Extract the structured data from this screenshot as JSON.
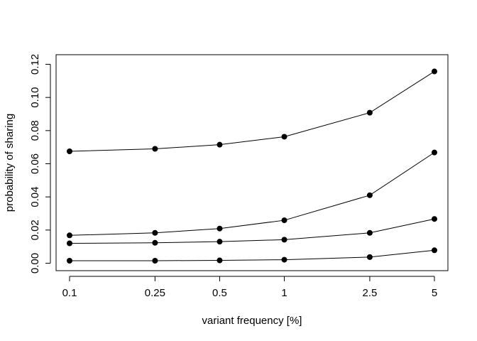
{
  "chart_data": {
    "type": "line",
    "title": "",
    "xlabel": "variant frequency [%]",
    "ylabel": "probability of sharing",
    "x_scale": "log",
    "x": [
      0.1,
      0.25,
      0.5,
      1,
      2.5,
      5
    ],
    "x_tick_labels": [
      "0.1",
      "0.25",
      "0.5",
      "1",
      "2.5",
      "5"
    ],
    "y_ticks": [
      0.0,
      0.02,
      0.04,
      0.06,
      0.08,
      0.1,
      0.12
    ],
    "y_tick_labels": [
      "0.00",
      "0.02",
      "0.04",
      "0.06",
      "0.08",
      "0.10",
      "0.12"
    ],
    "ylim": [
      -0.004,
      0.124
    ],
    "grid": false,
    "legend": "none",
    "series": [
      {
        "values": [
          0.0675,
          0.069,
          0.0715,
          0.0763,
          0.0908,
          0.1157
        ]
      },
      {
        "values": [
          0.0168,
          0.0183,
          0.0209,
          0.0259,
          0.041,
          0.0668
        ]
      },
      {
        "values": [
          0.012,
          0.0123,
          0.013,
          0.0142,
          0.0183,
          0.0267
        ]
      },
      {
        "values": [
          0.0015,
          0.0015,
          0.0017,
          0.0021,
          0.0037,
          0.0078
        ]
      }
    ]
  }
}
